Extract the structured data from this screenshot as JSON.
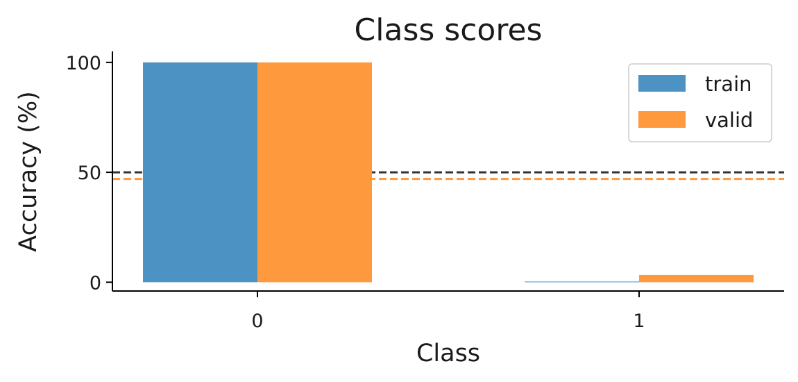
{
  "chart_data": {
    "type": "bar",
    "title": "Class scores",
    "xlabel": "Class",
    "ylabel": "Accuracy (%)",
    "categories": [
      "0",
      "1"
    ],
    "ylim": [
      -4,
      105
    ],
    "yticks": [
      "0",
      "50",
      "100"
    ],
    "series": [
      {
        "name": "train",
        "values": [
          100,
          0.3
        ],
        "color": "#4c92c3"
      },
      {
        "name": "valid",
        "values": [
          100,
          3.3
        ],
        "color": "#ff993e"
      }
    ],
    "reference_lines": [
      {
        "value": 50,
        "color": "#333333",
        "style": "dashed"
      },
      {
        "value": 47,
        "color": "#ff993e",
        "style": "dashed"
      }
    ],
    "legend": "top-right",
    "grid": false
  }
}
